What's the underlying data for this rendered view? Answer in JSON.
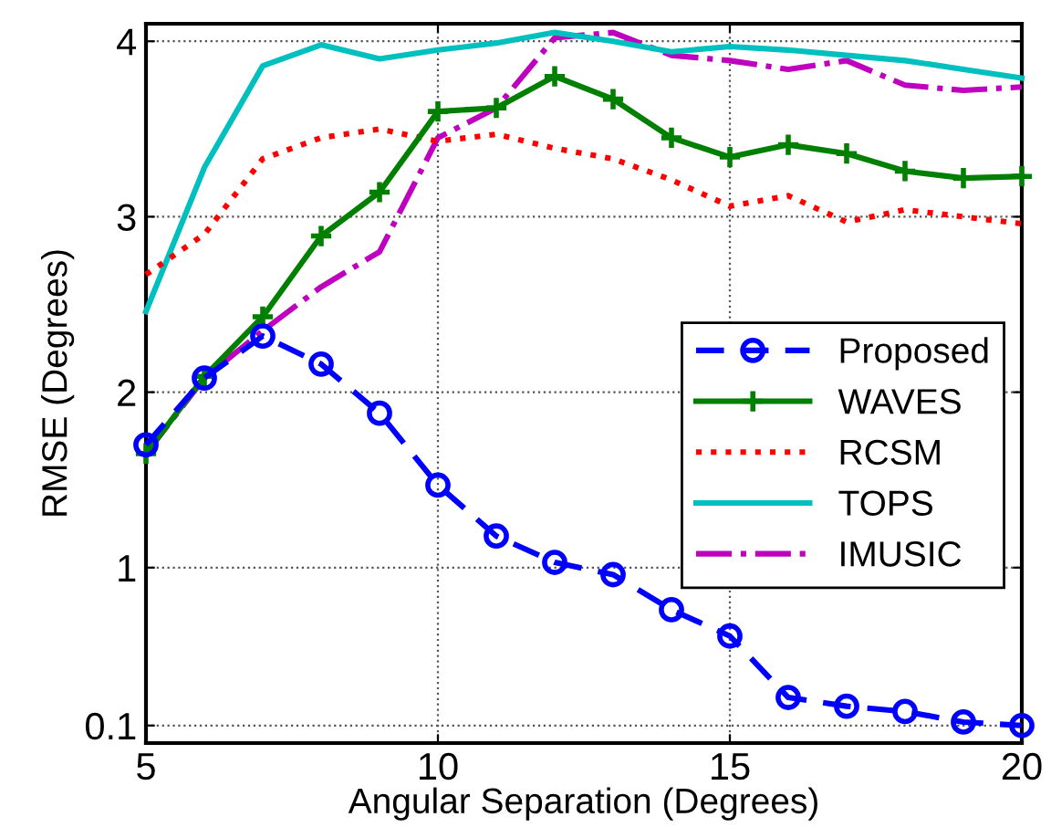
{
  "chart_data": {
    "type": "line",
    "xlabel": "Angular Separation (Degrees)",
    "ylabel": "RMSE (Degrees)",
    "x": [
      5,
      6,
      7,
      8,
      9,
      10,
      11,
      12,
      13,
      14,
      15,
      16,
      17,
      18,
      19,
      20
    ],
    "xlim": [
      5,
      20
    ],
    "xticks": [
      5,
      10,
      15,
      20
    ],
    "ylim": [
      0,
      4.1
    ],
    "yticks": [
      0.1,
      1,
      2,
      3,
      4
    ],
    "grid": true,
    "legend": "right",
    "series": [
      {
        "name": "Proposed",
        "color": "#0000ff",
        "line_style": "dashed",
        "marker": "circle",
        "values": [
          1.7,
          2.08,
          2.32,
          2.16,
          1.88,
          1.47,
          1.18,
          1.03,
          0.96,
          0.76,
          0.61,
          0.26,
          0.21,
          0.18,
          0.12,
          0.1
        ]
      },
      {
        "name": "WAVES",
        "color": "#007f00",
        "line_style": "solid",
        "marker": "cross",
        "values": [
          1.65,
          2.09,
          2.43,
          2.89,
          3.14,
          3.6,
          3.62,
          3.8,
          3.67,
          3.45,
          3.34,
          3.41,
          3.36,
          3.26,
          3.22,
          3.23
        ]
      },
      {
        "name": "RCSM",
        "color": "#ff0000",
        "line_style": "dotted",
        "marker": "none",
        "values": [
          2.67,
          2.9,
          3.33,
          3.45,
          3.5,
          3.43,
          3.47,
          3.39,
          3.33,
          3.21,
          3.06,
          3.12,
          2.97,
          3.04,
          3.0,
          2.96
        ]
      },
      {
        "name": "TOPS",
        "color": "#00bfbf",
        "line_style": "solid",
        "marker": "none",
        "values": [
          2.46,
          3.28,
          3.86,
          3.98,
          3.9,
          3.95,
          3.99,
          4.05,
          4.0,
          3.94,
          3.97,
          3.95,
          3.92,
          3.89,
          3.84,
          3.79
        ]
      },
      {
        "name": "IMUSIC",
        "color": "#bf00bf",
        "line_style": "dashdot",
        "marker": "none",
        "values": [
          1.65,
          2.08,
          2.35,
          2.6,
          2.8,
          3.45,
          3.62,
          4.02,
          4.05,
          3.92,
          3.89,
          3.84,
          3.89,
          3.75,
          3.72,
          3.74
        ]
      }
    ]
  }
}
